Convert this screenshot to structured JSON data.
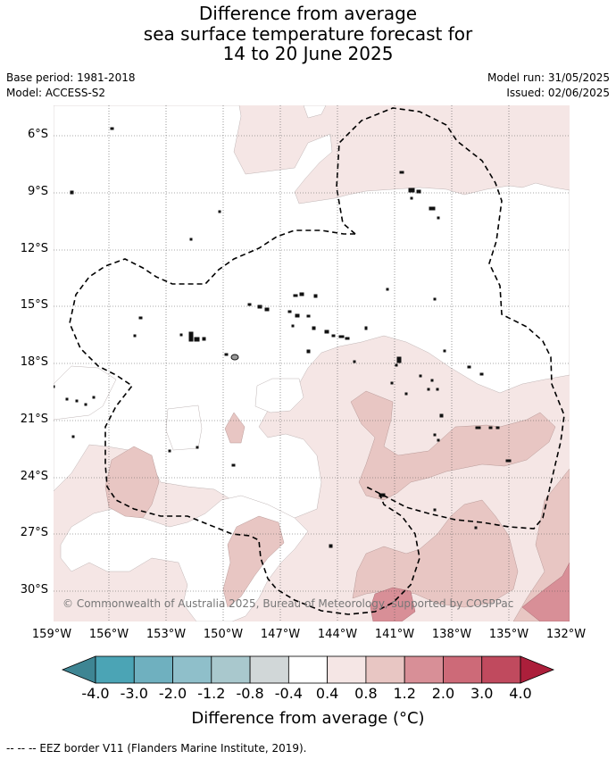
{
  "title": {
    "line1": "Difference from average",
    "line2": "sea surface temperature forecast for",
    "line3": "14 to 20 June 2025"
  },
  "info": {
    "base_period": "Base period: 1981-2018",
    "model": "Model: ACCESS-S2",
    "model_run": "Model run: 31/05/2025",
    "issued": "Issued: 02/06/2025"
  },
  "map": {
    "lat_labels": [
      "6°S",
      "9°S",
      "12°S",
      "15°S",
      "18°S",
      "21°S",
      "24°S",
      "27°S",
      "30°S"
    ],
    "lon_labels": [
      "159°W",
      "156°W",
      "153°W",
      "150°W",
      "147°W",
      "144°W",
      "141°W",
      "138°W",
      "135°W",
      "132°W"
    ],
    "lat_range": [
      -32.5,
      -4.5
    ],
    "lon_range": [
      -159,
      -132
    ],
    "credit": "© Commonwealth of Australia 2025, Bureau of Meteorology, supported by COSPPac"
  },
  "colorbar": {
    "labels": [
      "-4.0",
      "-3.0",
      "-2.0",
      "-1.2",
      "-0.8",
      "-0.4",
      "0.4",
      "0.8",
      "1.2",
      "2.0",
      "3.0",
      "4.0"
    ],
    "colors": [
      "#3e8593",
      "#4ba4b5",
      "#6fb0bf",
      "#8fbfca",
      "#a9c8cd",
      "#d1d7d8",
      "#ffffff",
      "#f5e6e5",
      "#e8c6c3",
      "#d88f97",
      "#cd6a78",
      "#c04a5e",
      "#ac1f3b"
    ],
    "title": "Difference from average (°C)"
  },
  "footer": "-- -- -- EEZ border V11 (Flanders Marine Institute, 2019)."
}
